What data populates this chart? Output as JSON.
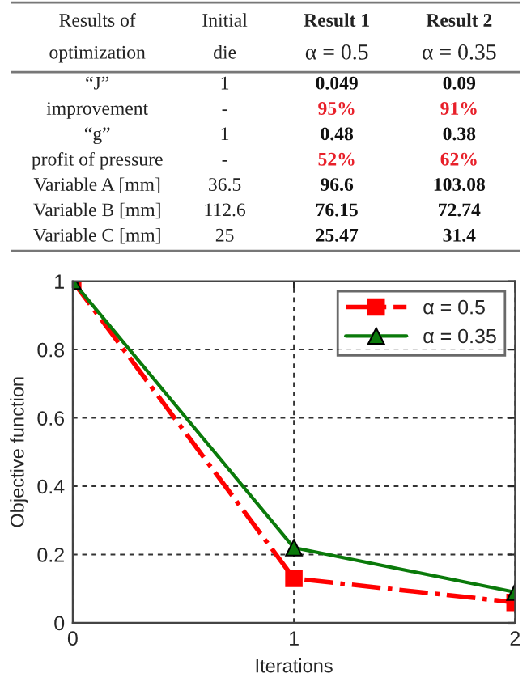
{
  "chart_data": [
    {
      "type": "other",
      "categories": [
        "Results of\noptimization",
        "Initial\ndie",
        "Result 1\nα = 0.5",
        "Result 2\nα = 0.35"
      ],
      "annotations": [
        "“J”",
        "1",
        "0.049",
        "0.09",
        "improvement",
        "-",
        "95%",
        "91%",
        "“g”",
        "1",
        "0.48",
        "0.38",
        "profit of pressure",
        "-",
        "52%",
        "62%",
        "Variable A [mm]",
        "36.5",
        "96.6",
        "103.08",
        "Variable B [mm]",
        "112.6",
        "76.15",
        "72.74",
        "Variable C [mm]",
        "25",
        "25.47",
        "31.4"
      ],
      "colors": [
        "#222222",
        "#222222",
        "#111111",
        "#111111",
        "#222222",
        "#222222",
        "#e8202a",
        "#e8202a",
        "#222222",
        "#222222",
        "#111111",
        "#111111",
        "#222222",
        "#222222",
        "#e8202a",
        "#e8202a",
        "#222222",
        "#222222",
        "#111111",
        "#111111",
        "#222222",
        "#222222",
        "#111111",
        "#111111",
        "#222222",
        "#222222",
        "#111111",
        "#111111"
      ]
    },
    {
      "type": "line",
      "x": [
        0,
        1,
        2
      ],
      "xlabel": "Iterations",
      "ylabel": "Objective function",
      "series": [
        {
          "name": "α = 0.5",
          "color": "#ff0000",
          "values": [
            1,
            0.13,
            0.06
          ],
          "marker": "square",
          "line_style": "dashdot"
        },
        {
          "name": "α = 0.35",
          "color": "#0a7a0a",
          "values": [
            1,
            0.22,
            0.09
          ],
          "marker": "triangle",
          "line_style": "solid"
        }
      ],
      "xlim": [
        0,
        2
      ],
      "ylim": [
        0,
        1
      ],
      "xticks": [
        0,
        1,
        2
      ],
      "yticks": [
        0,
        0.2,
        0.4,
        0.6,
        0.8,
        1
      ],
      "grid": true,
      "legend": "top right"
    }
  ]
}
